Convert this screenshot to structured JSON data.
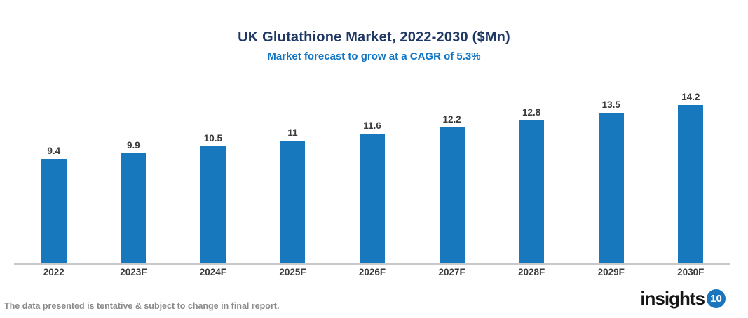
{
  "header": {
    "title": "UK Glutathione Market, 2022-2030 ($Mn)",
    "subtitle": "Market forecast to grow at a CAGR of 5.3%"
  },
  "chart_data": {
    "type": "bar",
    "categories": [
      "2022",
      "2023F",
      "2024F",
      "2025F",
      "2026F",
      "2027F",
      "2028F",
      "2029F",
      "2030F"
    ],
    "values": [
      9.4,
      9.9,
      10.5,
      11,
      11.6,
      12.2,
      12.8,
      13.5,
      14.2
    ],
    "value_labels": [
      "9.4",
      "9.9",
      "10.5",
      "11",
      "11.6",
      "12.2",
      "12.8",
      "13.5",
      "14.2"
    ],
    "title": "UK Glutathione Market, 2022-2030 ($Mn)",
    "subtitle": "Market forecast to grow at a CAGR of 5.3%",
    "xlabel": "",
    "ylabel": "",
    "ylim": [
      0,
      15
    ],
    "grid": false,
    "legend": false,
    "bar_color": "#1878be"
  },
  "footer": {
    "note": "The data presented is tentative & subject to change in final report."
  },
  "logo": {
    "text": "insights",
    "badge": "10",
    "badge_color": "#1b75bc"
  },
  "colors": {
    "title": "#1f3864",
    "subtitle": "#0f75c5",
    "bar": "#1878be",
    "axis_line": "#c9c9c9",
    "labels": "#3b3b3b",
    "footer": "#8a8a8a"
  }
}
